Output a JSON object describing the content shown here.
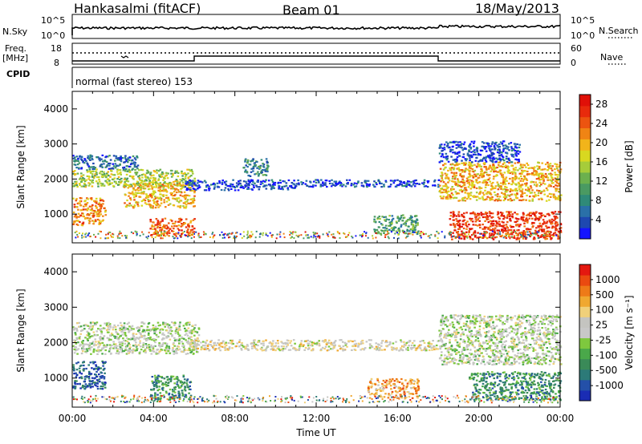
{
  "header": {
    "station": "Hankasalmi (fitACF)",
    "beam": "Beam 01",
    "date": "18/May/2013"
  },
  "panels": {
    "nsky": {
      "left_label": "N.Sky",
      "tick_top": "10^5",
      "tick_bottom": "10^0",
      "right_ticks": [
        "10^5",
        "10^0"
      ],
      "right_label": "N.Search"
    },
    "freq": {
      "left_label_1": "Freq.",
      "left_label_2": "[MHz]",
      "left_ticks": [
        "18",
        "8"
      ],
      "right_ticks": [
        "60",
        "0"
      ],
      "right_label": "Nave"
    },
    "cpid": {
      "label": "CPID",
      "mode_text": "normal (fast stereo) 153"
    }
  },
  "chart_data": [
    {
      "type": "heatmap",
      "title": "",
      "xlabel": "Time UT",
      "ylabel": "Slant Range [km]",
      "x_ticks": [
        "00:00",
        "04:00",
        "08:00",
        "12:00",
        "16:00",
        "20:00",
        "00:00"
      ],
      "xlim": [
        0,
        24
      ],
      "ylim": [
        180,
        4500
      ],
      "y_ticks": [
        1000,
        2000,
        3000,
        4000
      ],
      "colorbar": {
        "label": "Power [dB]",
        "ticks": [
          "4",
          "8",
          "12",
          "16",
          "20",
          "24",
          "28"
        ],
        "colors": [
          "#1414ff",
          "#1e48b0",
          "#2a70a8",
          "#2f8a78",
          "#4a9a62",
          "#6cb04e",
          "#a6cc3a",
          "#d8d820",
          "#f2b41a",
          "#f08414",
          "#ec5410",
          "#e82a0c",
          "#e01008"
        ]
      },
      "features": [
        {
          "t0": 0.0,
          "t1": 1.6,
          "r0": 700,
          "r1": 1500,
          "level": 9
        },
        {
          "t0": 0.0,
          "t1": 6.0,
          "r0": 1800,
          "r1": 2300,
          "level": 6
        },
        {
          "t0": 2.5,
          "t1": 6.0,
          "r0": 1200,
          "r1": 1900,
          "level": 8
        },
        {
          "t0": 0.0,
          "t1": 3.2,
          "r0": 2300,
          "r1": 2700,
          "level": 2
        },
        {
          "t0": 3.8,
          "t1": 6.0,
          "r0": 400,
          "r1": 900,
          "level": 10
        },
        {
          "t0": 5.5,
          "t1": 11.0,
          "r0": 1700,
          "r1": 2000,
          "level": 1
        },
        {
          "t0": 8.3,
          "t1": 9.6,
          "r0": 2100,
          "r1": 2600,
          "level": 3
        },
        {
          "t0": 14.8,
          "t1": 17.0,
          "r0": 450,
          "r1": 1000,
          "level": 4
        },
        {
          "t0": 11.0,
          "t1": 18.0,
          "r0": 1800,
          "r1": 2000,
          "level": 1
        },
        {
          "t0": 18.0,
          "t1": 24.0,
          "r0": 1400,
          "r1": 2500,
          "level": 8
        },
        {
          "t0": 18.5,
          "t1": 24.0,
          "r0": 300,
          "r1": 1100,
          "level": 11
        },
        {
          "t0": 18.0,
          "t1": 22.0,
          "r0": 2500,
          "r1": 3100,
          "level": 1
        }
      ]
    },
    {
      "type": "heatmap",
      "title": "",
      "xlabel": "Time UT",
      "ylabel": "Slant Range [km]",
      "x_ticks": [
        "00:00",
        "04:00",
        "08:00",
        "12:00",
        "16:00",
        "20:00",
        "00:00"
      ],
      "xlim": [
        0,
        24
      ],
      "ylim": [
        180,
        4500
      ],
      "y_ticks": [
        1000,
        2000,
        3000,
        4000
      ],
      "colorbar": {
        "label": "Velocity [m s⁻¹]",
        "ticks": [
          "1000",
          "500",
          "100",
          "25",
          "-25",
          "-100",
          "-500",
          "-1000"
        ],
        "colors": [
          "#1a2cb4",
          "#2450a8",
          "#2c7a78",
          "#3a8a58",
          "#4aa84a",
          "#7ec83e",
          "#c8c8c8",
          "#c4c4c0",
          "#f0d07a",
          "#f0a830",
          "#ee7a18",
          "#ea4a10",
          "#e41810"
        ]
      },
      "features": [
        {
          "t0": 0.0,
          "t1": 6.2,
          "r0": 1700,
          "r1": 2600,
          "level": 6
        },
        {
          "t0": 0.0,
          "t1": 1.6,
          "r0": 700,
          "r1": 1500,
          "level": 1
        },
        {
          "t0": 3.8,
          "t1": 5.8,
          "r0": 400,
          "r1": 1100,
          "level": 3
        },
        {
          "t0": 5.5,
          "t1": 18.0,
          "r0": 1800,
          "r1": 2100,
          "level": 7
        },
        {
          "t0": 18.0,
          "t1": 24.0,
          "r0": 1400,
          "r1": 2800,
          "level": 6
        },
        {
          "t0": 19.5,
          "t1": 24.0,
          "r0": 400,
          "r1": 1200,
          "level": 3
        },
        {
          "t0": 14.5,
          "t1": 17.0,
          "r0": 450,
          "r1": 1000,
          "level": 9
        }
      ]
    }
  ]
}
